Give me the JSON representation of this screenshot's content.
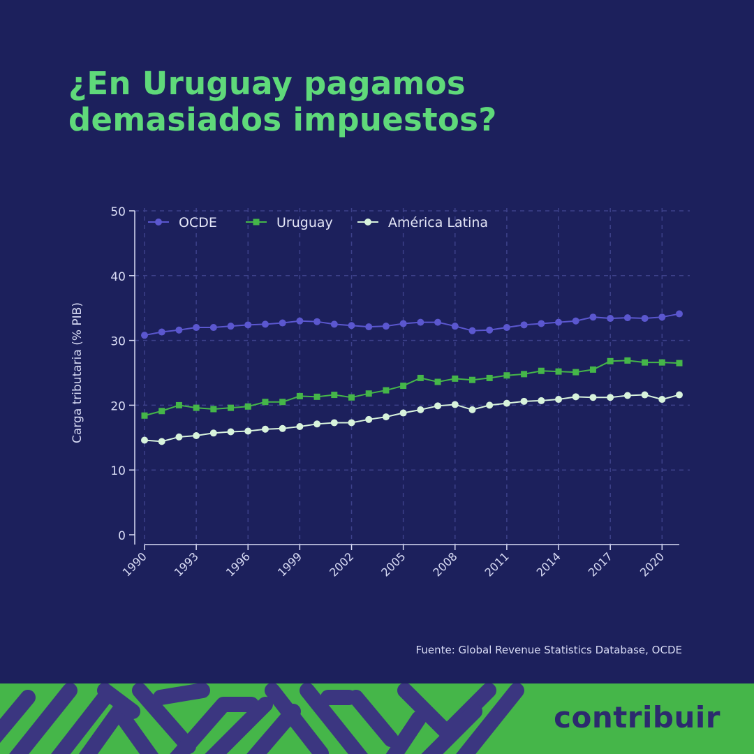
{
  "title": {
    "line1": "¿En Uruguay pagamos",
    "line2": "demasiados impuestos?"
  },
  "source": "Fuente: Global Revenue Statistics Database, OCDE",
  "brand": "contribuir",
  "colors": {
    "background": "#1c205c",
    "title": "#5fd97a",
    "ocde": "#5b57cf",
    "uruguay": "#45b649",
    "america_latina": "#d8f3dc",
    "footer_green": "#45b649",
    "footer_purple": "#3b3680"
  },
  "chart_data": {
    "type": "line",
    "title": "",
    "xlabel": "",
    "ylabel": "Carga tributaria (% PIB)",
    "ylim": [
      0,
      50
    ],
    "yticks": [
      0,
      10,
      20,
      30,
      40,
      50
    ],
    "xticks": [
      "1990",
      "1993",
      "1996",
      "1999",
      "2002",
      "2005",
      "2008",
      "2011",
      "2014",
      "2017",
      "2020"
    ],
    "legend_position": "top-left",
    "x": [
      1990,
      1991,
      1992,
      1993,
      1994,
      1995,
      1996,
      1997,
      1998,
      1999,
      2000,
      2001,
      2002,
      2003,
      2004,
      2005,
      2006,
      2007,
      2008,
      2009,
      2010,
      2011,
      2012,
      2013,
      2014,
      2015,
      2016,
      2017,
      2018,
      2019,
      2020,
      2021
    ],
    "series": [
      {
        "name": "OCDE",
        "marker": "circle",
        "values": [
          30.8,
          31.3,
          31.6,
          32.0,
          32.0,
          32.2,
          32.4,
          32.5,
          32.7,
          33.0,
          32.9,
          32.5,
          32.3,
          32.1,
          32.2,
          32.6,
          32.8,
          32.8,
          32.2,
          31.5,
          31.6,
          32.0,
          32.4,
          32.6,
          32.8,
          33.0,
          33.6,
          33.4,
          33.5,
          33.4,
          33.6,
          34.1
        ]
      },
      {
        "name": "Uruguay",
        "marker": "square",
        "values": [
          18.4,
          19.1,
          20.0,
          19.6,
          19.4,
          19.6,
          19.8,
          20.5,
          20.5,
          21.4,
          21.3,
          21.6,
          21.2,
          21.8,
          22.3,
          23.0,
          24.2,
          23.6,
          24.1,
          23.9,
          24.2,
          24.6,
          24.8,
          25.3,
          25.2,
          25.1,
          25.5,
          26.8,
          26.9,
          26.6,
          26.6,
          26.5
        ]
      },
      {
        "name": "América Latina",
        "marker": "circle",
        "values": [
          14.6,
          14.4,
          15.1,
          15.3,
          15.7,
          15.9,
          16.0,
          16.3,
          16.4,
          16.7,
          17.1,
          17.3,
          17.3,
          17.8,
          18.2,
          18.8,
          19.3,
          19.9,
          20.1,
          19.3,
          20.0,
          20.3,
          20.6,
          20.7,
          20.9,
          21.3,
          21.2,
          21.2,
          21.5,
          21.6,
          20.9,
          21.6
        ]
      }
    ]
  }
}
